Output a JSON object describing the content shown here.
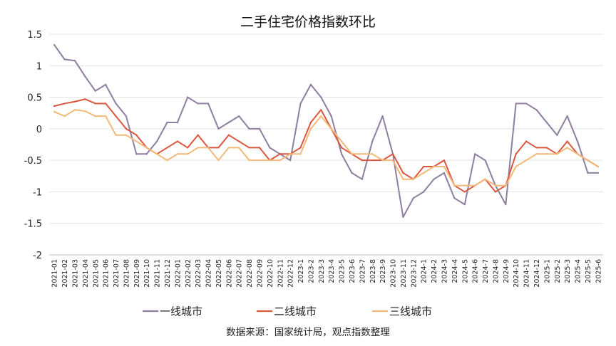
{
  "chart_data": {
    "type": "line",
    "title": "二手住宅价格指数环比",
    "xlabel": "",
    "ylabel": "",
    "ylim": [
      -2,
      1.5
    ],
    "yticks": [
      "1.5",
      "1",
      "0.5",
      "0",
      "-0.5",
      "-1",
      "-1.5",
      "-2"
    ],
    "grid": true,
    "legend_position": "bottom",
    "x": [
      "2021-01",
      "2021-02",
      "2021-03",
      "2021-04",
      "2021-05",
      "2021-06",
      "2021-07",
      "2021-08",
      "2021-09",
      "2021-10",
      "2021-11",
      "2021-12",
      "2022-01",
      "2022-02",
      "2022-03",
      "2022-04",
      "2022-05",
      "2022-06",
      "2022-07",
      "2022-08",
      "2022-09",
      "2022-10",
      "2022-11",
      "2022-12",
      "2023-1",
      "2023-2",
      "2023-3",
      "2023-4",
      "2023-5",
      "2023-6",
      "2023-7",
      "2023-8",
      "2023-9",
      "2023-10",
      "2023-11",
      "2023-12",
      "2024-1",
      "2024-2",
      "2024-3",
      "2024-4",
      "2024-5",
      "2024-6",
      "2024-7",
      "2024-8",
      "2024-9",
      "2024-10",
      "2024-11",
      "2024-12",
      "2025-1",
      "2025-2",
      "2025-3",
      "2025-4",
      "2025-5",
      "2025-6"
    ],
    "series": [
      {
        "name": "一线城市",
        "color": "#8e7ea0",
        "values": [
          1.33,
          1.1,
          1.08,
          0.83,
          0.6,
          0.7,
          0.4,
          0.2,
          -0.4,
          -0.4,
          -0.2,
          0.1,
          0.1,
          0.5,
          0.4,
          0.4,
          0.0,
          0.1,
          0.2,
          0.0,
          0.0,
          -0.3,
          -0.4,
          -0.5,
          0.4,
          0.7,
          0.5,
          0.2,
          -0.4,
          -0.7,
          -0.8,
          -0.2,
          0.2,
          -0.4,
          -1.4,
          -1.1,
          -1.0,
          -0.8,
          -0.7,
          -1.1,
          -1.2,
          -0.4,
          -0.5,
          -0.9,
          -1.2,
          0.4,
          0.4,
          0.3,
          0.1,
          -0.1,
          0.2,
          -0.2,
          -0.7,
          -0.7
        ]
      },
      {
        "name": "二线城市",
        "color": "#d9573e",
        "values": [
          0.36,
          0.4,
          0.43,
          0.47,
          0.4,
          0.4,
          0.2,
          0.0,
          -0.1,
          -0.3,
          -0.4,
          -0.3,
          -0.2,
          -0.3,
          -0.1,
          -0.3,
          -0.3,
          -0.1,
          -0.2,
          -0.3,
          -0.3,
          -0.5,
          -0.4,
          -0.4,
          -0.3,
          0.1,
          0.3,
          0.0,
          -0.3,
          -0.4,
          -0.5,
          -0.5,
          -0.5,
          -0.4,
          -0.7,
          -0.8,
          -0.6,
          -0.6,
          -0.5,
          -0.9,
          -1.0,
          -0.9,
          -0.8,
          -1.0,
          -0.9,
          -0.4,
          -0.2,
          -0.3,
          -0.3,
          -0.4,
          -0.2,
          -0.4,
          -0.5,
          -0.6
        ]
      },
      {
        "name": "三线城市",
        "color": "#f2b978",
        "values": [
          0.27,
          0.2,
          0.3,
          0.28,
          0.2,
          0.2,
          -0.1,
          -0.1,
          -0.2,
          -0.3,
          -0.4,
          -0.5,
          -0.4,
          -0.4,
          -0.3,
          -0.3,
          -0.5,
          -0.3,
          -0.3,
          -0.5,
          -0.5,
          -0.5,
          -0.5,
          -0.4,
          -0.4,
          0.0,
          0.2,
          0.0,
          -0.2,
          -0.4,
          -0.4,
          -0.4,
          -0.5,
          -0.5,
          -0.8,
          -0.8,
          -0.7,
          -0.6,
          -0.6,
          -0.9,
          -0.9,
          -0.9,
          -0.8,
          -0.9,
          -0.9,
          -0.6,
          -0.5,
          -0.4,
          -0.4,
          -0.4,
          -0.3,
          -0.4,
          -0.5,
          -0.6
        ]
      }
    ]
  },
  "source_note": "数据来源：国家统计局，观点指数整理"
}
